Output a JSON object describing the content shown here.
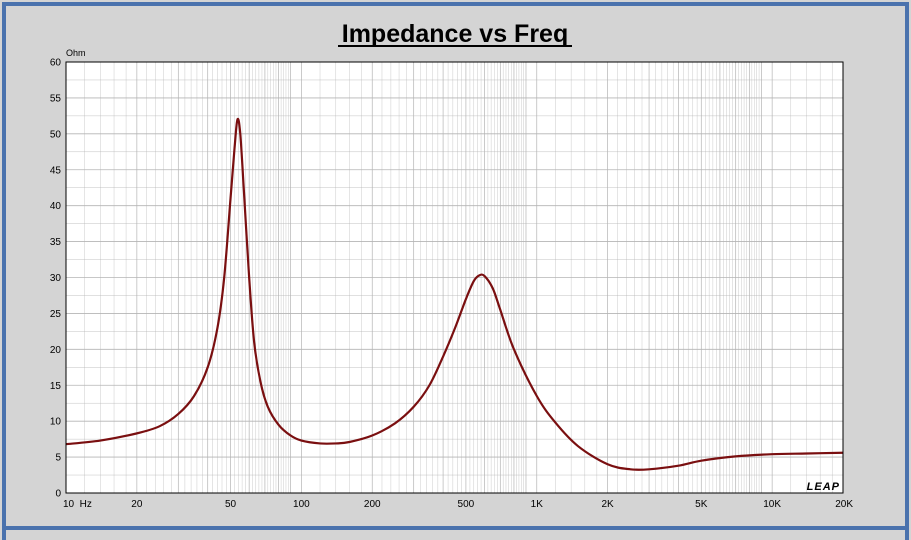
{
  "colors": {
    "frame": "#4a72ad",
    "background": "#d4d4d4",
    "plot_background": "#ffffff",
    "grid": "#b4b4b4",
    "curve": "#7a0f10"
  },
  "chart_data": {
    "type": "line",
    "title": "Impedance vs Freq",
    "ylabel": "Ohm",
    "brand": "LEAP",
    "x_scale": "log",
    "xlim": [
      10,
      20000
    ],
    "ylim": [
      0,
      60
    ],
    "y_ticks": [
      0,
      5,
      10,
      15,
      20,
      25,
      30,
      35,
      40,
      45,
      50,
      55,
      60
    ],
    "y_tick_labels": [
      "0",
      "5",
      "10",
      "15",
      "20",
      "25",
      "30",
      "35",
      "40",
      "45",
      "50",
      "55",
      "60"
    ],
    "x_ticks": [
      10,
      20,
      50,
      100,
      200,
      500,
      1000,
      2000,
      5000,
      10000,
      20000
    ],
    "x_tick_labels": [
      "10  Hz",
      "20",
      "50",
      "100",
      "200",
      "500",
      "1K",
      "2K",
      "5K",
      "10K",
      "20K"
    ],
    "grid": true,
    "series": [
      {
        "x": [
          10,
          14,
          20,
          25,
          30,
          35,
          40,
          44,
          47,
          50,
          52,
          53.5,
          55,
          57,
          60,
          63,
          67,
          72,
          80,
          90,
          100,
          120,
          140,
          160,
          200,
          250,
          300,
          350,
          400,
          450,
          500,
          540,
          570,
          600,
          650,
          700,
          800,
          1000,
          1200,
          1500,
          2000,
          2500,
          3000,
          4000,
          5000,
          7000,
          10000,
          14000,
          20000
        ],
        "y": [
          6.8,
          7.3,
          8.3,
          9.3,
          11,
          13.5,
          17.5,
          23,
          30,
          41,
          48,
          52,
          50,
          42,
          30,
          21,
          15.5,
          12,
          9.5,
          8,
          7.3,
          6.9,
          6.9,
          7.1,
          8,
          9.7,
          12,
          15,
          19,
          23,
          27,
          29.5,
          30.3,
          30.2,
          28.5,
          25.5,
          20,
          13.5,
          9.8,
          6.5,
          4,
          3.3,
          3.3,
          3.8,
          4.5,
          5.1,
          5.4,
          5.5,
          5.6
        ]
      }
    ]
  }
}
